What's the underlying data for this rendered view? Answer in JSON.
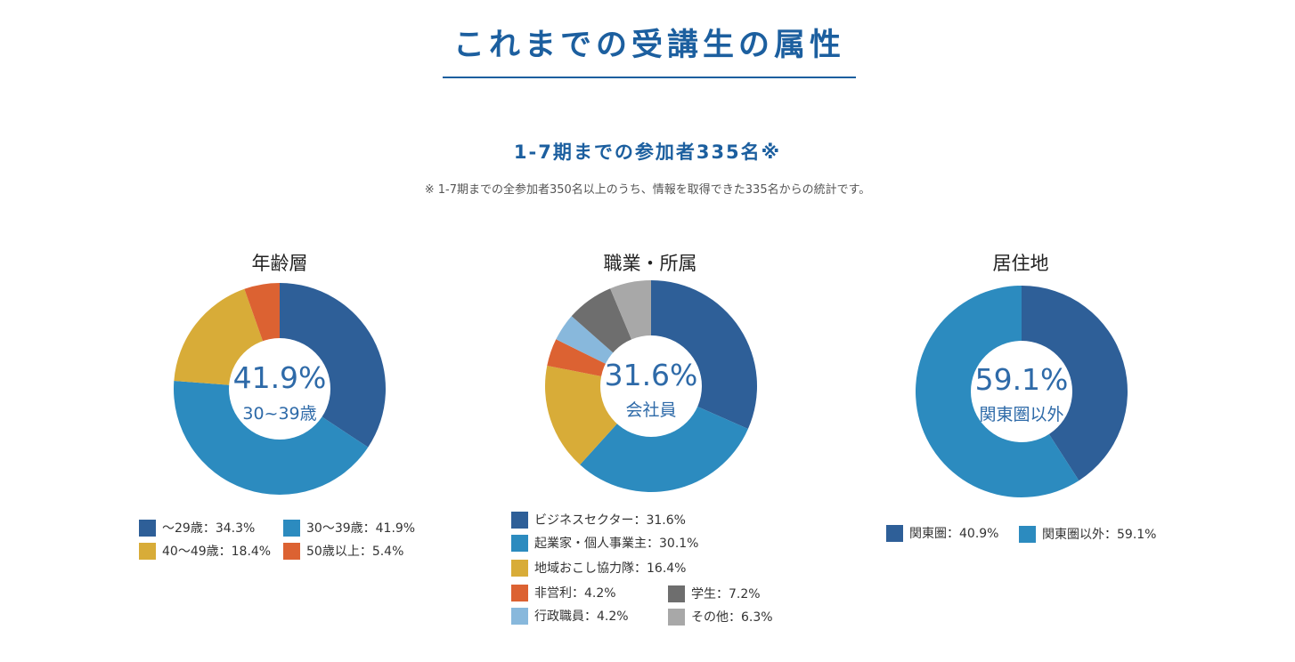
{
  "header": {
    "title": "これまでの受講生の属性",
    "subtitle": "1-7期までの参加者335名※",
    "note": "※ 1-7期までの全参加者350名以上のうち、情報を取得できた335名からの統計です。"
  },
  "colors": {
    "dark_blue": "#2e5f98",
    "mid_blue": "#2c8bbf",
    "yellow": "#d8ac38",
    "orange": "#dc6232",
    "light_blue": "#88b8dc",
    "dark_gray": "#6e6e6e",
    "light_gray": "#a8a8a8"
  },
  "chart_data": [
    {
      "type": "pie",
      "title": "年齢層",
      "center_value": "41.9%",
      "center_label": "30~39歳",
      "slices": [
        {
          "label": "〜29歳：34.3%",
          "value": 34.3,
          "color": "#2e5f98"
        },
        {
          "label": "30〜39歳：41.9%",
          "value": 41.9,
          "color": "#2c8bbf"
        },
        {
          "label": "40〜49歳：18.4%",
          "value": 18.4,
          "color": "#d8ac38"
        },
        {
          "label": "50歳以上：5.4%",
          "value": 5.4,
          "color": "#dc6232"
        }
      ]
    },
    {
      "type": "pie",
      "title": "職業・所属",
      "center_value": "31.6%",
      "center_label": "会社員",
      "slices": [
        {
          "label": "ビジネスセクター：31.6%",
          "value": 31.6,
          "color": "#2e5f98"
        },
        {
          "label": "起業家・個人事業主：30.1%",
          "value": 30.1,
          "color": "#2c8bbf"
        },
        {
          "label": "地域おこし協力隊：16.4%",
          "value": 16.4,
          "color": "#d8ac38"
        },
        {
          "label": "非営利：4.2%",
          "value": 4.2,
          "color": "#dc6232"
        },
        {
          "label": "行政職員：4.2%",
          "value": 4.2,
          "color": "#88b8dc"
        },
        {
          "label": "学生：7.2%",
          "value": 7.2,
          "color": "#6e6e6e"
        },
        {
          "label": "その他：6.3%",
          "value": 6.3,
          "color": "#a8a8a8"
        }
      ]
    },
    {
      "type": "pie",
      "title": "居住地",
      "center_value": "59.1%",
      "center_label": "関東圏以外",
      "slices": [
        {
          "label": "関東圏：40.9%",
          "value": 40.9,
          "color": "#2e5f98"
        },
        {
          "label": "関東圏以外：59.1%",
          "value": 59.1,
          "color": "#2c8bbf"
        }
      ]
    }
  ]
}
